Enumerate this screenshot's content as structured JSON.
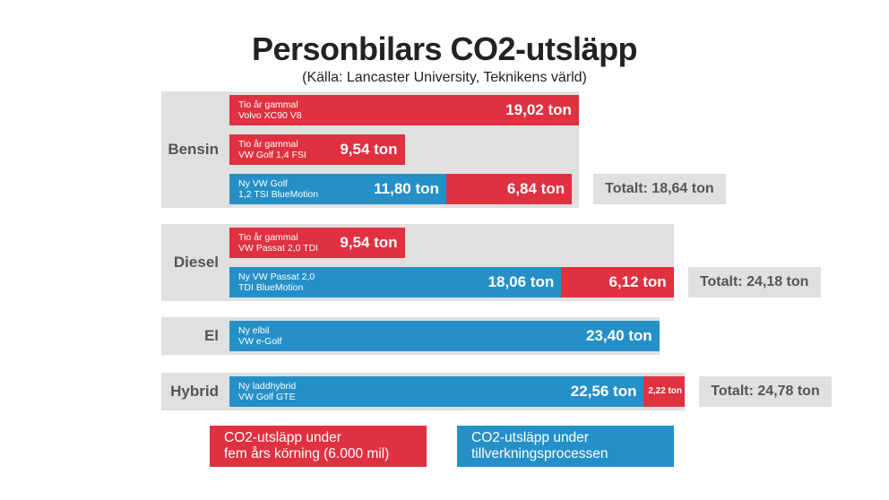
{
  "header": {
    "title": "Personbilars CO2-utsläpp",
    "subtitle": "(Källa: Lancaster University, Teknikens värld)"
  },
  "colors": {
    "drive": "#e03140",
    "production": "#2590c8",
    "group_bg": "#e0e0e0"
  },
  "chart_data": {
    "type": "bar",
    "orientation": "horizontal",
    "stacked": true,
    "unit": "ton",
    "series": [
      {
        "key": "production",
        "color": "#2590c8"
      },
      {
        "key": "drive",
        "color": "#e03140"
      }
    ],
    "groups": [
      {
        "label": "Bensin",
        "total": "Totalt: 18,64 ton",
        "bars": [
          {
            "line1": "Tio år gammal",
            "line2": "Volvo XC90 V8",
            "segments": [
              {
                "series": "drive",
                "value": 19.02,
                "text": "19,02 ton"
              }
            ]
          },
          {
            "line1": "Tio år gammal",
            "line2": "VW Golf 1,4 FSI",
            "segments": [
              {
                "series": "drive",
                "value": 9.54,
                "text": "9,54 ton"
              }
            ]
          },
          {
            "line1": "Ny VW Golf",
            "line2": "1,2 TSI BlueMotion",
            "segments": [
              {
                "series": "production",
                "value": 11.8,
                "text": "11,80 ton"
              },
              {
                "series": "drive",
                "value": 6.84,
                "text": "6,84 ton"
              }
            ]
          }
        ]
      },
      {
        "label": "Diesel",
        "total": "Totalt: 24,18 ton",
        "bars": [
          {
            "line1": "Tio år gammal",
            "line2": "VW Passat 2,0 TDI",
            "segments": [
              {
                "series": "drive",
                "value": 9.54,
                "text": "9,54 ton"
              }
            ]
          },
          {
            "line1": "Ny VW Passat 2,0",
            "line2": "TDI BlueMotion",
            "segments": [
              {
                "series": "production",
                "value": 18.06,
                "text": "18,06 ton"
              },
              {
                "series": "drive",
                "value": 6.12,
                "text": "6,12 ton"
              }
            ]
          }
        ]
      },
      {
        "label": "El",
        "total": "",
        "bars": [
          {
            "line1": "Ny elbil",
            "line2": "VW e-Golf",
            "segments": [
              {
                "series": "production",
                "value": 23.4,
                "text": "23,40 ton"
              }
            ]
          }
        ]
      },
      {
        "label": "Hybrid",
        "total": "Totalt: 24,78 ton",
        "bars": [
          {
            "line1": "Ny laddhybrid",
            "line2": "VW Golf GTE",
            "segments": [
              {
                "series": "production",
                "value": 22.56,
                "text": "22,56 ton"
              },
              {
                "series": "drive",
                "value": 2.22,
                "text": "2,22 ton",
                "small": true
              }
            ]
          }
        ]
      }
    ]
  },
  "legend": [
    {
      "series": "drive",
      "line1": "CO2-utsläpp under",
      "line2": "fem års körning (6.000 mil)"
    },
    {
      "series": "production",
      "line1": "CO2-utsläpp under",
      "line2": "tillverkningsprocessen"
    }
  ]
}
